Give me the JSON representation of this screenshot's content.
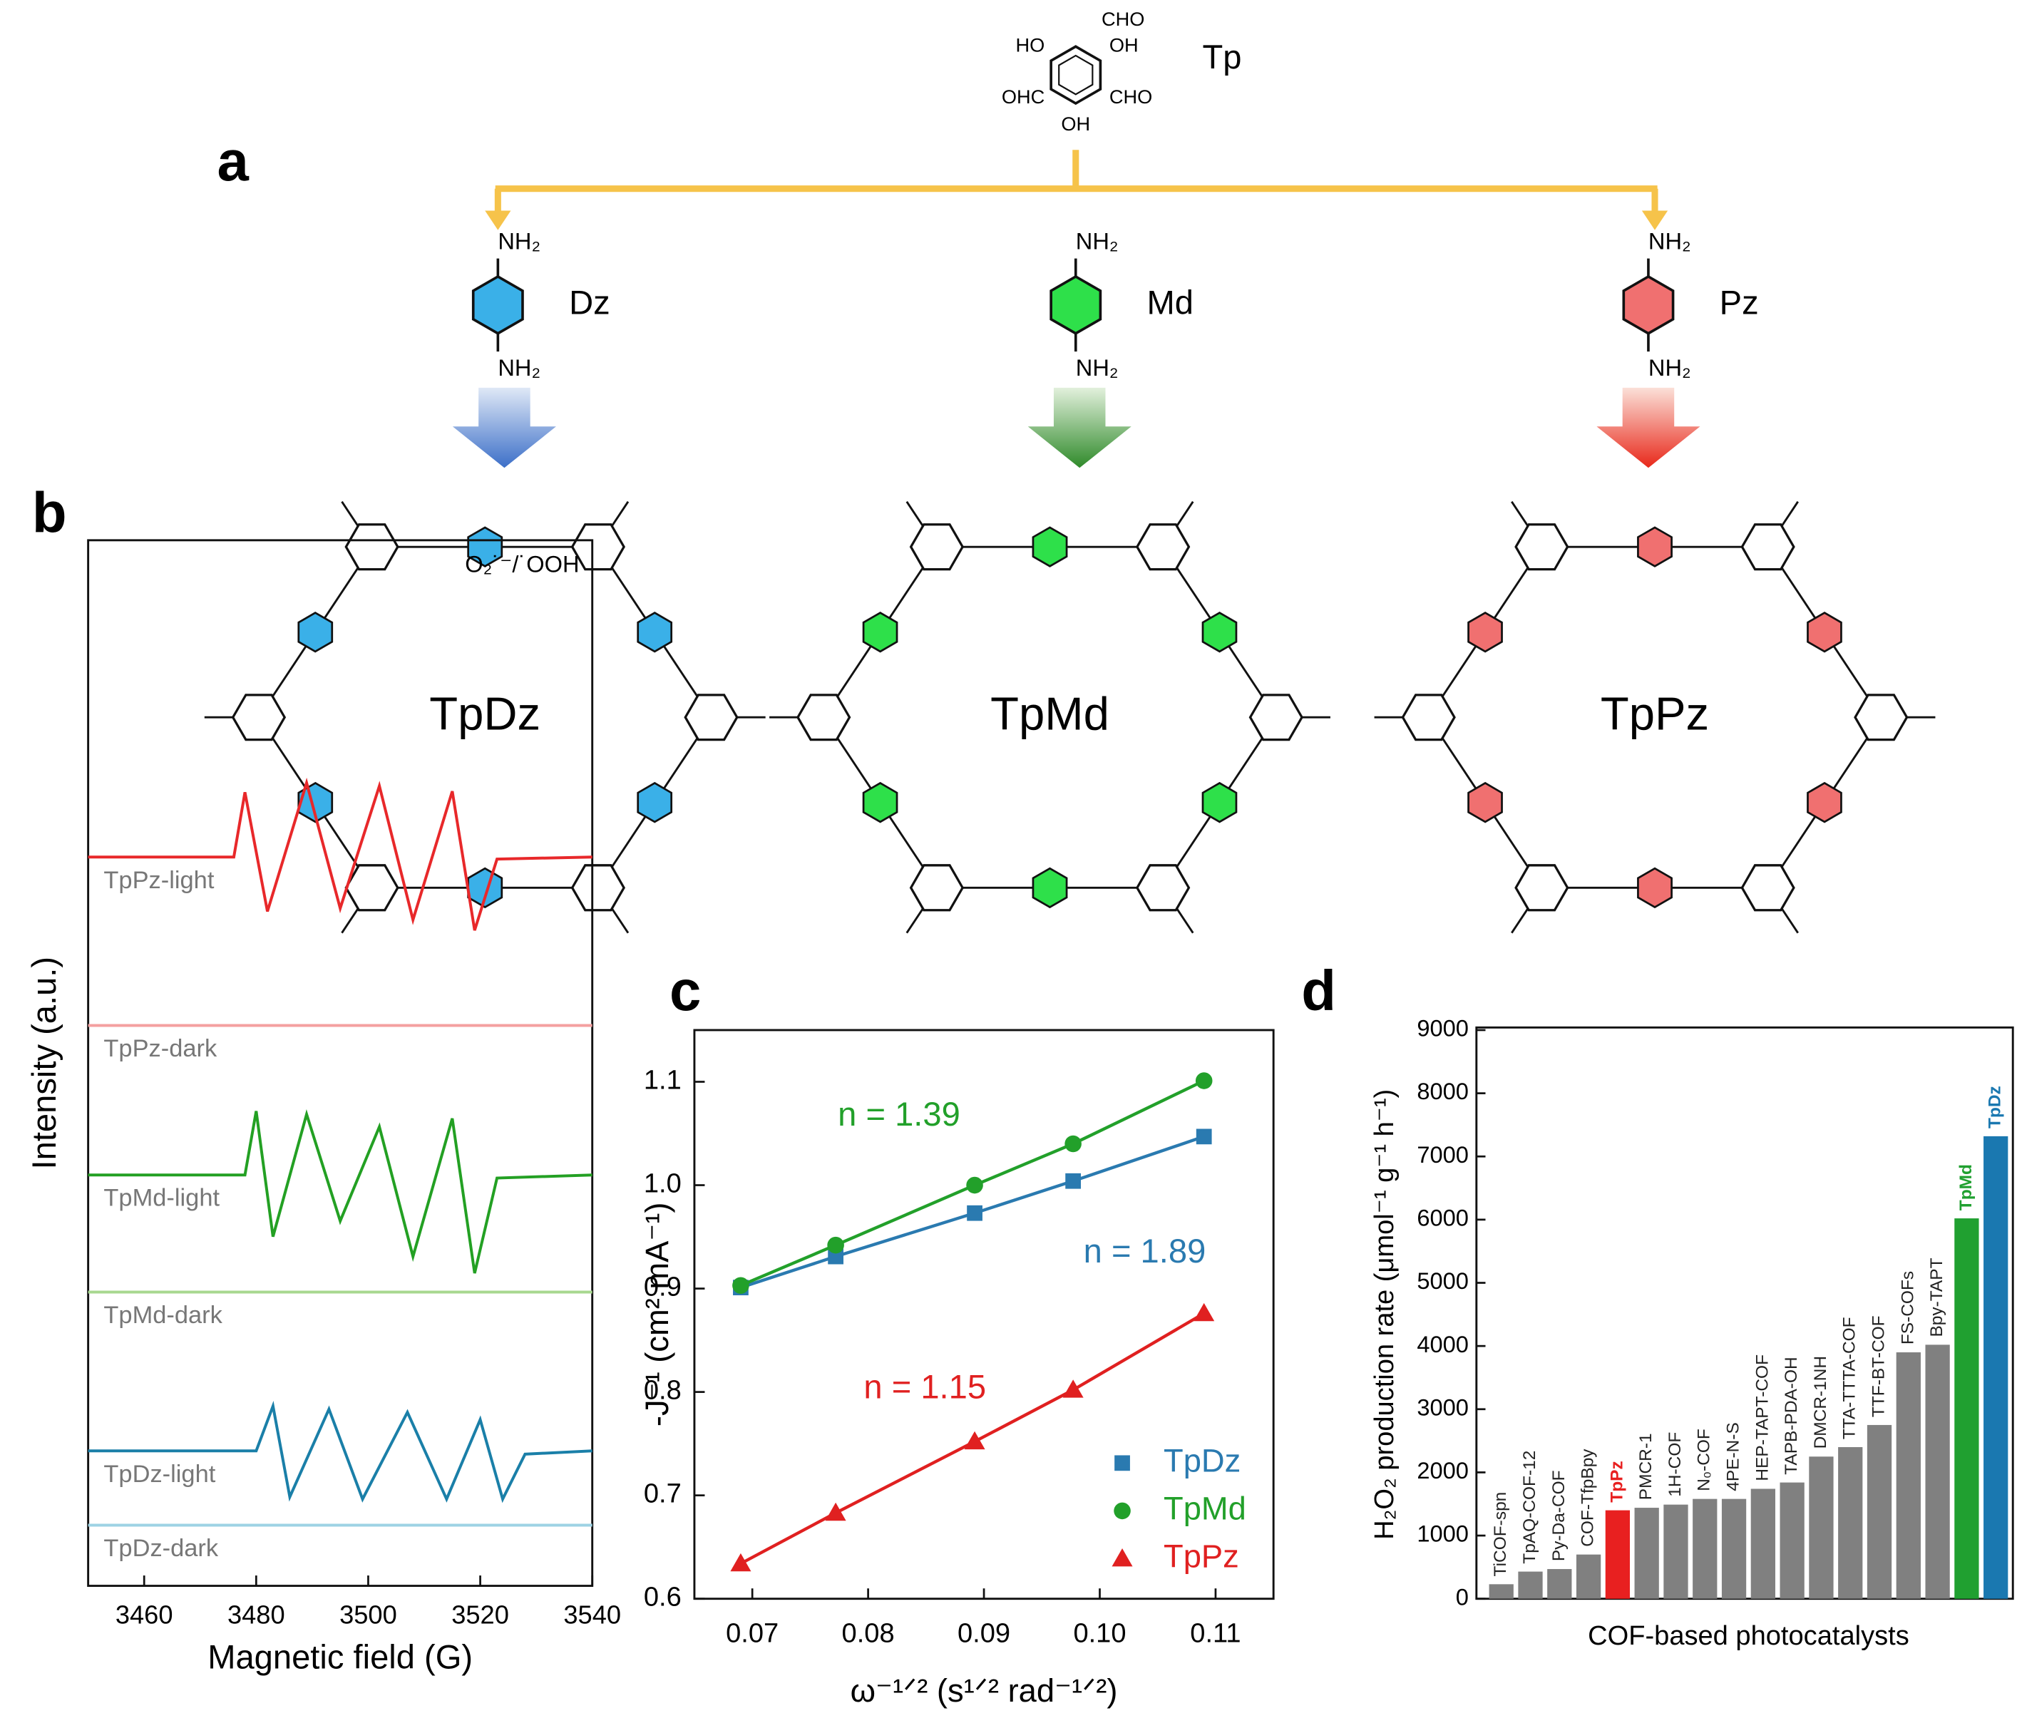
{
  "panel_a": {
    "label": "a",
    "tp": {
      "name": "Tp",
      "substituents": [
        "CHO",
        "HO",
        "OH",
        "OHC",
        "CHO",
        "OH"
      ]
    },
    "monomers": [
      {
        "name": "Dz",
        "groups": [
          "NH₂",
          "NH₂"
        ],
        "color": "#3ab0e8"
      },
      {
        "name": "Md",
        "groups": [
          "NH₂",
          "NH₂"
        ],
        "color": "#2ee04a"
      },
      {
        "name": "Pz",
        "groups": [
          "NH₂",
          "NH₂"
        ],
        "color": "#f07070"
      }
    ],
    "frameworks": [
      "TpDz",
      "TpMd",
      "TpPz"
    ]
  },
  "chart_data": [
    {
      "type": "line",
      "panel_label": "b",
      "annotation": "O₂˙⁻/˙OOH",
      "x_label": "Magnetic field (G)",
      "y_label": "Intensity (a.u.)",
      "xlim": [
        3450,
        3540
      ],
      "xticks": [
        3460,
        3480,
        3500,
        3520,
        3540
      ],
      "ylim": [
        0,
        100
      ],
      "series": [
        {
          "name": "TpPz-light",
          "color": "#e8282a",
          "x": [
            3450,
            3476,
            3478,
            3482,
            3489,
            3495,
            3502,
            3508,
            3515,
            3519,
            3523,
            3540
          ],
          "values": [
            69.7,
            69.7,
            75.9,
            64.5,
            76.8,
            64.8,
            76.5,
            63.7,
            76.0,
            62.7,
            69.5,
            69.7
          ]
        },
        {
          "name": "TpPz-dark",
          "color": "#f4a0a0",
          "x": [
            3450,
            3540
          ],
          "values": [
            53.6,
            53.6
          ]
        },
        {
          "name": "TpMd-light",
          "color": "#23a023",
          "x": [
            3450,
            3478,
            3480,
            3483,
            3489,
            3495,
            3502,
            3508,
            3515,
            3519,
            3523,
            3540
          ],
          "values": [
            39.3,
            39.3,
            45.4,
            33.4,
            45.1,
            34.9,
            43.9,
            31.5,
            44.7,
            29.9,
            39.0,
            39.3
          ]
        },
        {
          "name": "TpMd-dark",
          "color": "#a8d890",
          "x": [
            3450,
            3540
          ],
          "values": [
            28.1,
            28.1
          ]
        },
        {
          "name": "TpDz-light",
          "color": "#1a7fa8",
          "x": [
            3450,
            3480,
            3483,
            3486,
            3493,
            3499,
            3507,
            3514,
            3520,
            3524,
            3528,
            3540
          ],
          "values": [
            12.9,
            12.9,
            17.2,
            8.5,
            16.9,
            8.3,
            16.6,
            8.3,
            15.9,
            8.3,
            12.6,
            12.9
          ]
        },
        {
          "name": "TpDz-dark",
          "color": "#9dd2e4",
          "x": [
            3450,
            3540
          ],
          "values": [
            5.8,
            5.8
          ]
        }
      ]
    },
    {
      "type": "scatter",
      "panel_label": "c",
      "x_label": "ω⁻¹ᐟ² (s¹ᐟ² rad⁻¹ᐟ²)",
      "y_label": "-J⁻¹ (cm² mA⁻¹)",
      "xlim": [
        0.065,
        0.115
      ],
      "xticks": [
        0.07,
        0.08,
        0.09,
        {
          "value": 0.1,
          "label": "0.10"
        },
        0.11
      ],
      "ylim": [
        0.6,
        1.15
      ],
      "yticks": [
        0.6,
        0.7,
        0.8,
        0.9,
        {
          "value": 1,
          "label": "1.0"
        },
        1.1
      ],
      "legend": "bottom-right",
      "annotations": [
        {
          "text": "n = 1.39",
          "color": "#22a02a"
        },
        {
          "text": "n = 1.89",
          "color": "#2a7ab0"
        },
        {
          "text": "n = 1.15",
          "color": "#e02020"
        }
      ],
      "x": [
        0.069,
        0.0772,
        0.0892,
        0.0977,
        0.109
      ],
      "series": [
        {
          "name": "TpDz",
          "color": "#2a7ab0",
          "marker": "square",
          "values": [
            0.901,
            0.931,
            0.973,
            1.004,
            1.047
          ]
        },
        {
          "name": "TpMd",
          "color": "#22a02a",
          "marker": "circle",
          "values": [
            0.903,
            0.942,
            1.0,
            1.04,
            1.101
          ]
        },
        {
          "name": "TpPz",
          "color": "#e02020",
          "marker": "triangle",
          "values": [
            0.634,
            0.683,
            0.752,
            0.802,
            0.876
          ]
        }
      ]
    },
    {
      "type": "bar",
      "panel_label": "d",
      "x_label": "COF-based photocatalysts",
      "y_label": "H₂O₂ production rate (μmol⁻¹ g⁻¹ h⁻¹)",
      "ylim": [
        0,
        9000
      ],
      "yticks": [
        0,
        1000,
        2000,
        3000,
        4000,
        5000,
        6000,
        7000,
        8000,
        9000
      ],
      "categories": [
        "TiCOF-spn",
        "TpAQ-COF-12",
        "Py-Da-COF",
        "COF-TfpBpy",
        "TpPz",
        "PMCR-1",
        "1H-COF",
        "N₀-COF",
        "4PE-N-S",
        "HEP-TAPT-COF",
        "TAPB-PDA-OH",
        "DMCR-1NH",
        "TTA-TTTA-COF",
        "TTF-BT-COF",
        "FS-COFs",
        "Bpy-TAPT",
        "TpMd",
        "TpDz"
      ],
      "values": [
        230,
        430,
        470,
        700,
        1400,
        1440,
        1490,
        1580,
        1580,
        1740,
        1840,
        2250,
        2400,
        2750,
        3900,
        4020,
        6020,
        7320
      ],
      "colors": [
        "#808080",
        "#808080",
        "#808080",
        "#808080",
        "#e82020",
        "#808080",
        "#808080",
        "#808080",
        "#808080",
        "#808080",
        "#808080",
        "#808080",
        "#808080",
        "#808080",
        "#808080",
        "#808080",
        "#20a030",
        "#1a78b0"
      ],
      "label_colors": [
        "#222222",
        "#222222",
        "#222222",
        "#222222",
        "#e82020",
        "#222222",
        "#222222",
        "#222222",
        "#222222",
        "#222222",
        "#222222",
        "#222222",
        "#222222",
        "#222222",
        "#222222",
        "#222222",
        "#20a030",
        "#1a78b0"
      ]
    }
  ]
}
